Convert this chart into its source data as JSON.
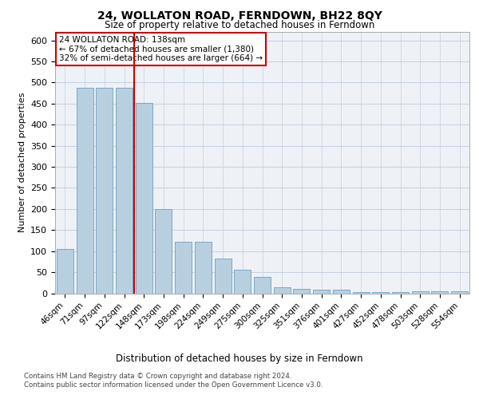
{
  "title1": "24, WOLLATON ROAD, FERNDOWN, BH22 8QY",
  "title2": "Size of property relative to detached houses in Ferndown",
  "xlabel": "Distribution of detached houses by size in Ferndown",
  "ylabel": "Number of detached properties",
  "categories": [
    "46sqm",
    "71sqm",
    "97sqm",
    "122sqm",
    "148sqm",
    "173sqm",
    "198sqm",
    "224sqm",
    "249sqm",
    "275sqm",
    "300sqm",
    "325sqm",
    "351sqm",
    "376sqm",
    "401sqm",
    "427sqm",
    "452sqm",
    "478sqm",
    "503sqm",
    "528sqm",
    "554sqm"
  ],
  "bar_values": [
    105,
    487,
    487,
    487,
    452,
    200,
    122,
    122,
    82,
    55,
    38,
    15,
    10,
    8,
    8,
    2,
    2,
    2,
    5,
    5,
    5
  ],
  "bar_color": "#b8cfe0",
  "bar_edge_color": "#6a9fc0",
  "vline_color": "#cc0000",
  "vline_index": 3.5,
  "annotation_line1": "24 WOLLATON ROAD: 138sqm",
  "annotation_line2": "← 67% of detached houses are smaller (1,380)",
  "annotation_line3": "32% of semi-detached houses are larger (664) →",
  "box_edge_color": "#cc0000",
  "ylim_max": 620,
  "yticks": [
    0,
    50,
    100,
    150,
    200,
    250,
    300,
    350,
    400,
    450,
    500,
    550,
    600
  ],
  "footer1": "Contains HM Land Registry data © Crown copyright and database right 2024.",
  "footer2": "Contains public sector information licensed under the Open Government Licence v3.0.",
  "bg_color": "#eef2f7",
  "grid_color": "#c5cfe0"
}
